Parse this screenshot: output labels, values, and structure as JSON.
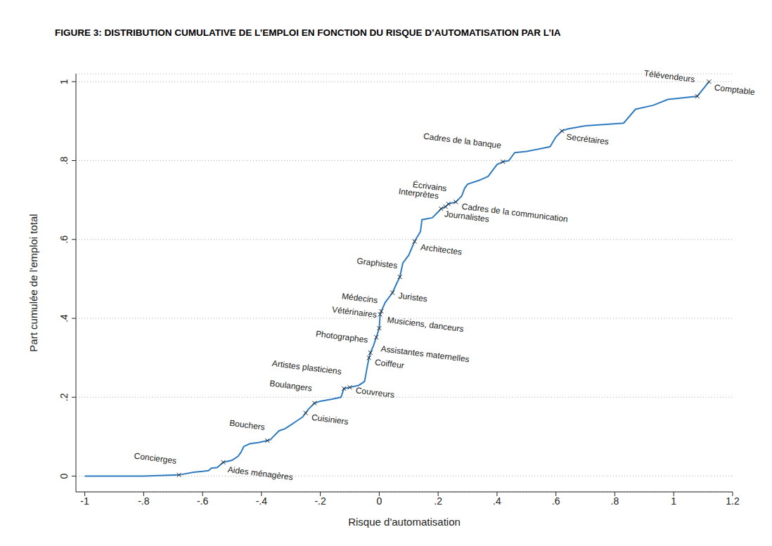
{
  "chart_data": {
    "type": "line",
    "title": "FIGURE 3: DISTRIBUTION CUMULATIVE DE L’EMPLOI EN FONCTION DU RISQUE D’AUTOMATISATION PAR L’IA",
    "x_label": "Risque d'automatisation",
    "y_label": "Part cumulée de l'emploi total",
    "color": "#2f7bbf",
    "grid": true,
    "xlim": [
      -1.03,
      1.2
    ],
    "ylim": [
      -0.04,
      1.02
    ],
    "xticks": [
      -1,
      {
        "value": -0.8,
        "label": "-.8"
      },
      {
        "value": -0.6,
        "label": "-.6"
      },
      {
        "value": -0.4,
        "label": "-.4"
      },
      {
        "value": -0.2,
        "label": "-.2"
      },
      0,
      {
        "value": 0.2,
        "label": ".2"
      },
      {
        "value": 0.4,
        "label": ".4"
      },
      {
        "value": 0.6,
        "label": ".6"
      },
      {
        "value": 0.8,
        "label": ".8"
      },
      1,
      1.2
    ],
    "yticks": [
      0,
      {
        "value": 0.2,
        "label": ".2"
      },
      {
        "value": 0.4,
        "label": ".4"
      },
      {
        "value": 0.6,
        "label": ".6"
      },
      {
        "value": 0.8,
        "label": ".8"
      },
      1
    ],
    "x": [
      -1,
      -0.8,
      -0.68,
      -0.63,
      -0.6,
      -0.58,
      -0.57,
      -0.55,
      -0.53,
      -0.5,
      -0.48,
      -0.47,
      -0.46,
      -0.44,
      -0.41,
      -0.38,
      -0.37,
      -0.36,
      -0.34,
      -0.32,
      -0.3,
      -0.28,
      -0.26,
      -0.25,
      -0.24,
      -0.22,
      -0.2,
      -0.16,
      -0.13,
      -0.12,
      -0.1,
      -0.07,
      -0.05,
      -0.045,
      -0.04,
      -0.035,
      -0.03,
      -0.02,
      -0.01,
      0,
      0.003,
      0.007,
      0.02,
      0.045,
      0.06,
      0.07,
      0.08,
      0.1,
      0.12,
      0.14,
      0.145,
      0.18,
      0.2,
      0.21,
      0.225,
      0.235,
      0.26,
      0.28,
      0.29,
      0.3,
      0.34,
      0.37,
      0.4,
      0.42,
      0.44,
      0.46,
      0.5,
      0.58,
      0.6,
      0.62,
      0.64,
      0.7,
      0.83,
      0.87,
      0.93,
      0.98,
      1.08,
      1.12
    ],
    "values": [
      0,
      0,
      0.003,
      0.01,
      0.012,
      0.014,
      0.02,
      0.022,
      0.035,
      0.04,
      0.05,
      0.06,
      0.075,
      0.082,
      0.085,
      0.09,
      0.092,
      0.1,
      0.115,
      0.12,
      0.13,
      0.14,
      0.15,
      0.16,
      0.17,
      0.185,
      0.19,
      0.195,
      0.2,
      0.222,
      0.225,
      0.23,
      0.24,
      0.26,
      0.28,
      0.3,
      0.313,
      0.33,
      0.352,
      0.375,
      0.41,
      0.418,
      0.44,
      0.465,
      0.49,
      0.505,
      0.54,
      0.56,
      0.595,
      0.62,
      0.65,
      0.655,
      0.67,
      0.678,
      0.683,
      0.69,
      0.695,
      0.71,
      0.73,
      0.74,
      0.75,
      0.76,
      0.79,
      0.797,
      0.8,
      0.82,
      0.823,
      0.835,
      0.86,
      0.875,
      0.88,
      0.888,
      0.895,
      0.93,
      0.94,
      0.955,
      0.963,
      1.0
    ],
    "annotations": {
      "marker": "x",
      "points": [
        {
          "label": "Concierges",
          "x": -0.68,
          "y": 0.003
        },
        {
          "label": "Aides ménagères",
          "x": -0.53,
          "y": 0.035
        },
        {
          "label": "Bouchers",
          "x": -0.38,
          "y": 0.09
        },
        {
          "label": "Cuisiniers",
          "x": -0.25,
          "y": 0.16
        },
        {
          "label": "Boulangers",
          "x": -0.22,
          "y": 0.185
        },
        {
          "label": "Artistes plasticiens",
          "x": -0.12,
          "y": 0.222
        },
        {
          "label": "Couvreurs",
          "x": -0.1,
          "y": 0.225
        },
        {
          "label": "Coiffeur",
          "x": -0.035,
          "y": 0.3
        },
        {
          "label": "Photographes",
          "x": -0.03,
          "y": 0.313
        },
        {
          "label": "Assistantes maternelles",
          "x": -0.01,
          "y": 0.352
        },
        {
          "label": "Vétérinaires",
          "x": 0,
          "y": 0.375
        },
        {
          "label": "Musiciens, danceurs",
          "x": 0.007,
          "y": 0.418
        },
        {
          "label": "Médecins",
          "x": 0.003,
          "y": 0.41
        },
        {
          "label": "Juristes",
          "x": 0.045,
          "y": 0.465
        },
        {
          "label": "Graphistes",
          "x": 0.07,
          "y": 0.505
        },
        {
          "label": "Architectes",
          "x": 0.12,
          "y": 0.595
        },
        {
          "label": "Interprètes",
          "x": 0.21,
          "y": 0.678
        },
        {
          "label": "Journalistes",
          "x": 0.225,
          "y": 0.683
        },
        {
          "label": "Écrivains",
          "x": 0.235,
          "y": 0.69
        },
        {
          "label": "Cadres de la communication",
          "x": 0.26,
          "y": 0.695
        },
        {
          "label": "Cadres de la banque",
          "x": 0.42,
          "y": 0.797
        },
        {
          "label": "Secrétaires",
          "x": 0.62,
          "y": 0.875
        },
        {
          "label": "Télévendeurs",
          "x": 1.08,
          "y": 0.963
        },
        {
          "label": "Comptable",
          "x": 1.12,
          "y": 1.0
        }
      ]
    }
  }
}
